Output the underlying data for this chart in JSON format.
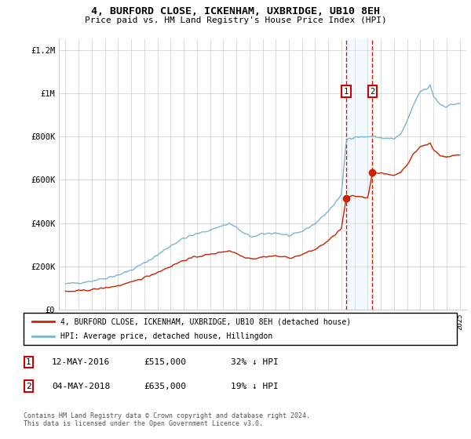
{
  "title": "4, BURFORD CLOSE, ICKENHAM, UXBRIDGE, UB10 8EH",
  "subtitle": "Price paid vs. HM Land Registry's House Price Index (HPI)",
  "legend_line1": "4, BURFORD CLOSE, ICKENHAM, UXBRIDGE, UB10 8EH (detached house)",
  "legend_line2": "HPI: Average price, detached house, Hillingdon",
  "transaction1_date": "12-MAY-2016",
  "transaction1_price": "£515,000",
  "transaction1_note": "32% ↓ HPI",
  "transaction1_year": 2016.36,
  "transaction1_value": 515000,
  "transaction2_date": "04-MAY-2018",
  "transaction2_price": "£635,000",
  "transaction2_note": "19% ↓ HPI",
  "transaction2_year": 2018.36,
  "transaction2_value": 635000,
  "footer1": "Contains HM Land Registry data © Crown copyright and database right 2024.",
  "footer2": "This data is licensed under the Open Government Licence v3.0.",
  "hpi_color": "#7ab4d8",
  "price_color": "#cc2200",
  "marker_box_color": "#cc0000",
  "shade_color": "#ddeeff",
  "dashed_color": "#cc2200",
  "background_color": "#ffffff",
  "grid_color": "#cccccc",
  "ylim": [
    0,
    1250000
  ],
  "yticks": [
    0,
    200000,
    400000,
    600000,
    800000,
    1000000,
    1200000
  ],
  "ytick_labels": [
    "£0",
    "£200K",
    "£400K",
    "£600K",
    "£800K",
    "£1M",
    "£1.2M"
  ]
}
